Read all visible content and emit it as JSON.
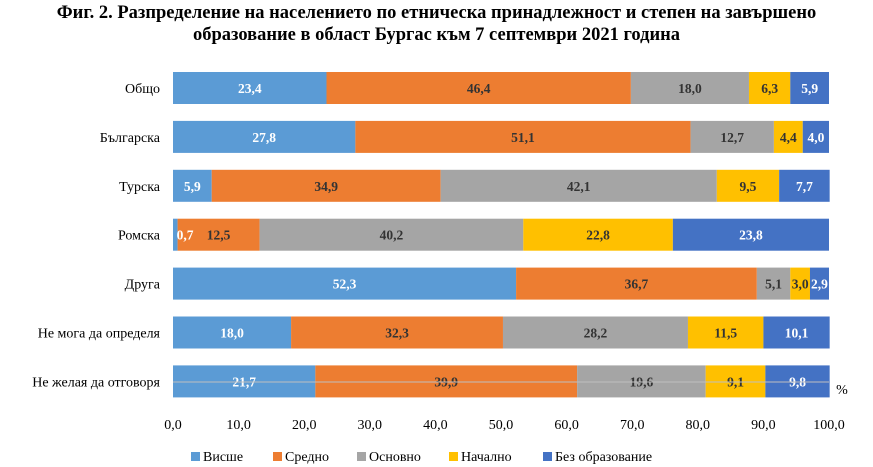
{
  "title_line1": "Фиг. 2. Разпределение на населението по етническа принадлежност и степен на завършено",
  "title_line2": "образование в област Бургас към 7 септември 2021 година",
  "chart_data": {
    "type": "bar",
    "orientation": "horizontal",
    "stacked": true,
    "title": "Фиг. 2. Разпределение на населението по етническа принадлежност и степен на завършено образование в област Бургас към 7 септември 2021 година",
    "categories": [
      "Общо",
      "Българска",
      "Турска",
      "Ромска",
      "Друга",
      "Не мога да определя",
      "Не желая да отговоря"
    ],
    "series": [
      {
        "name": "Висше",
        "color": "#5B9BD5",
        "values": [
          23.4,
          27.8,
          5.9,
          0.7,
          52.3,
          18.0,
          21.7
        ],
        "labels": [
          "23,4",
          "27,8",
          "5,9",
          "0,7",
          "52,3",
          "18,0",
          "21,7"
        ],
        "label_color": "#ffffff"
      },
      {
        "name": "Средно",
        "color": "#ED7D31",
        "values": [
          46.4,
          51.1,
          34.9,
          12.5,
          36.7,
          32.3,
          39.9
        ],
        "labels": [
          "46,4",
          "51,1",
          "34,9",
          "12,5",
          "36,7",
          "32,3",
          "39,9"
        ],
        "label_color": "#333333"
      },
      {
        "name": "Основно",
        "color": "#A5A5A5",
        "values": [
          18.0,
          12.7,
          42.1,
          40.2,
          5.1,
          28.2,
          19.6
        ],
        "labels": [
          "18,0",
          "12,7",
          "42,1",
          "40,2",
          "5,1",
          "28,2",
          "19,6"
        ],
        "label_color": "#333333"
      },
      {
        "name": "Начално",
        "color": "#FFC000",
        "values": [
          6.3,
          4.4,
          9.5,
          22.8,
          3.0,
          11.5,
          9.1
        ],
        "labels": [
          "6,3",
          "4,4",
          "9,5",
          "22,8",
          "3,0",
          "11,5",
          "9,1"
        ],
        "label_color": "#333333"
      },
      {
        "name": "Без образование",
        "color": "#4472C4",
        "values": [
          5.9,
          4.0,
          7.7,
          23.8,
          2.9,
          10.1,
          9.8
        ],
        "labels": [
          "5,9",
          "4,0",
          "7,7",
          "23,8",
          "2,9",
          "10,1",
          "9,8"
        ],
        "label_color": "#ffffff"
      }
    ],
    "xlim": [
      0,
      100
    ],
    "xticks": [
      0,
      10,
      20,
      30,
      40,
      50,
      60,
      70,
      80,
      90,
      100
    ],
    "xtick_labels": [
      "0,0",
      "10,0",
      "20,0",
      "30,0",
      "40,0",
      "50,0",
      "60,0",
      "70,0",
      "80,0",
      "90,0",
      "100,0"
    ],
    "x_unit": "%",
    "grid": false,
    "legend_position": "bottom"
  }
}
